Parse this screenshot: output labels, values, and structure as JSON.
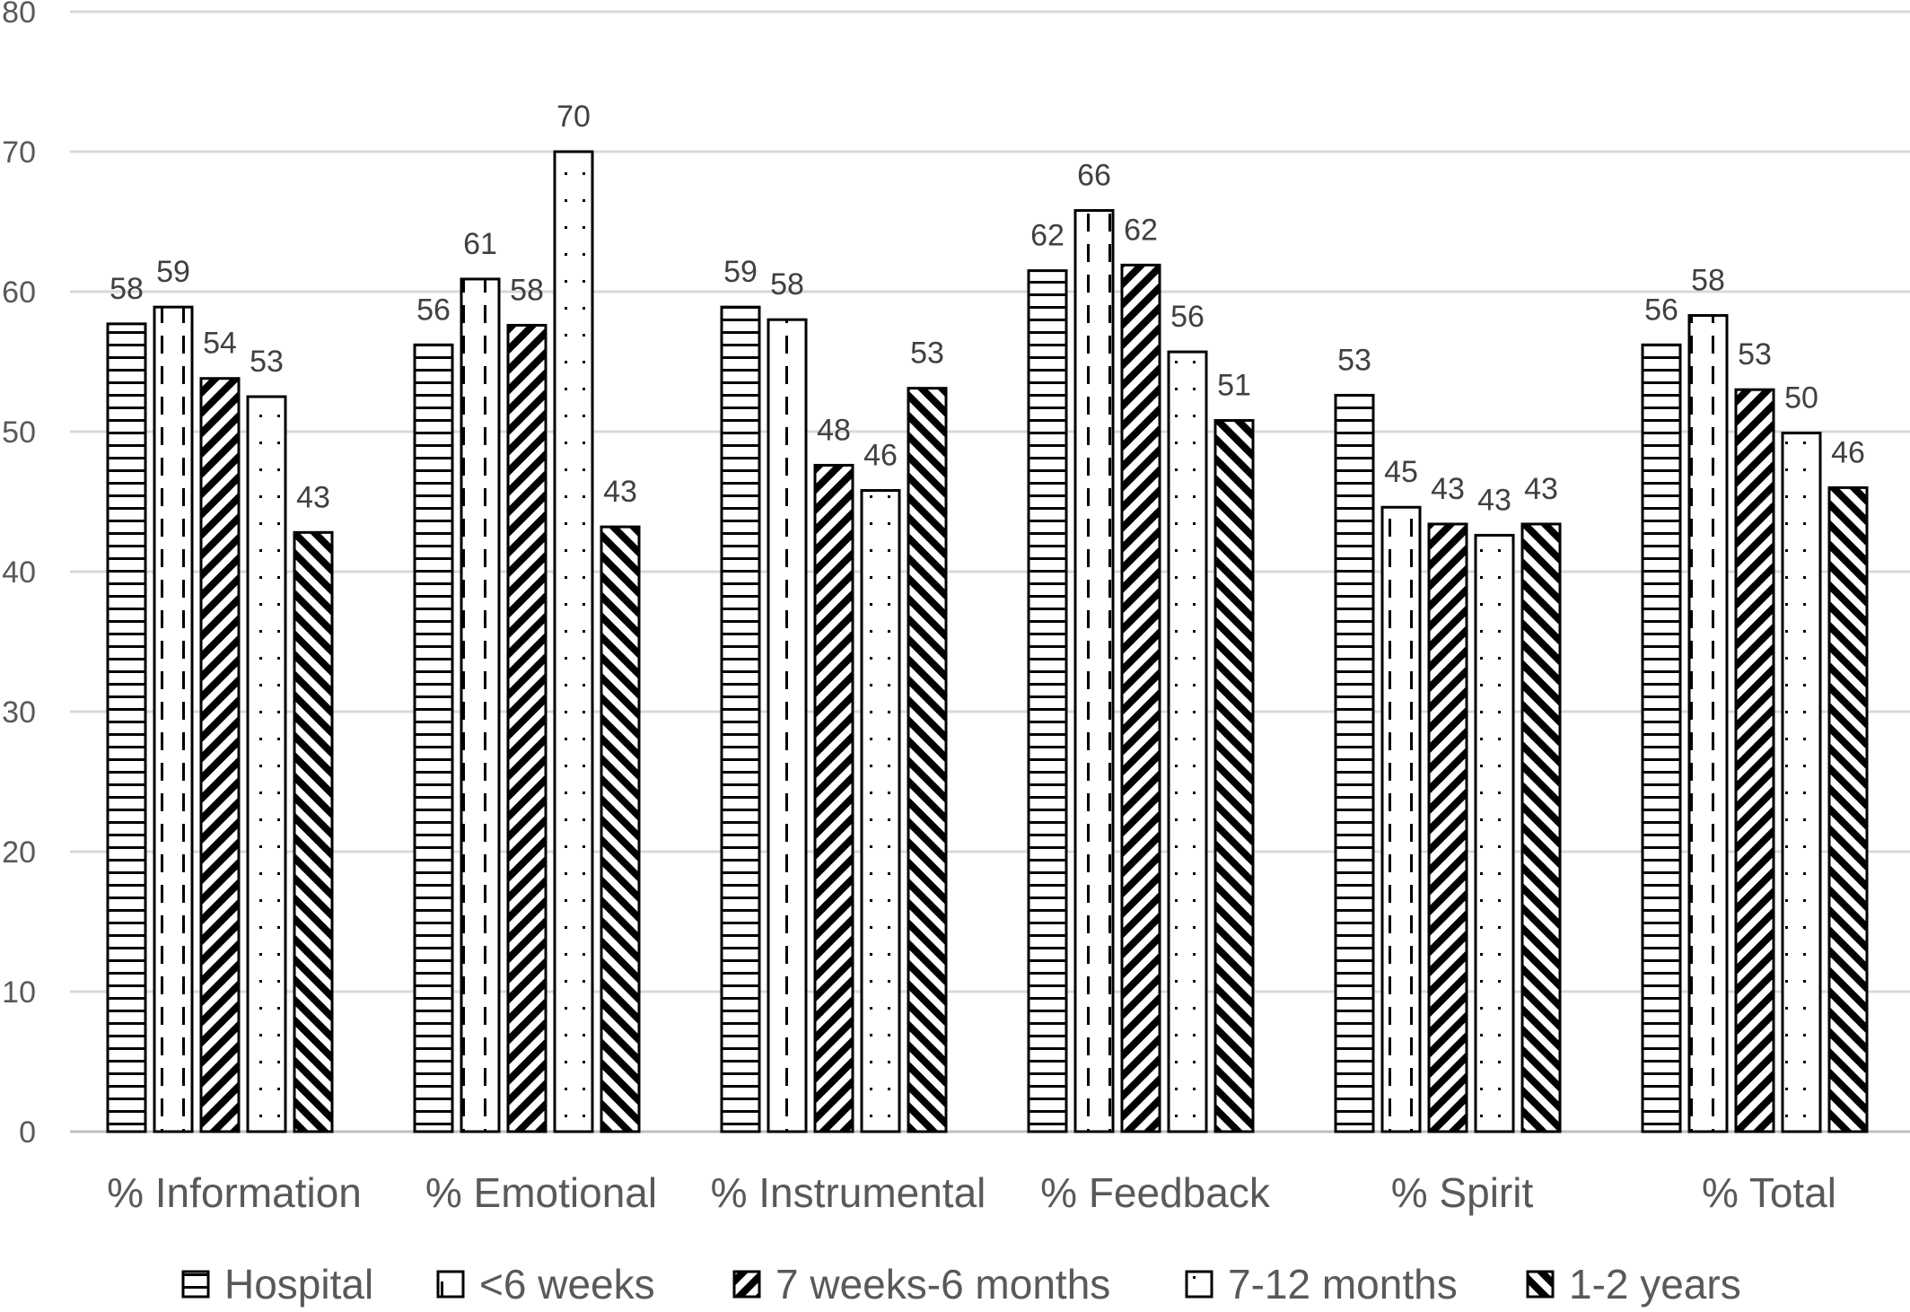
{
  "chart_data": {
    "type": "bar",
    "title": "",
    "xlabel": "",
    "ylabel": "",
    "ylim": [
      0,
      80
    ],
    "yticks": [
      0,
      10,
      20,
      30,
      40,
      50,
      60,
      70,
      80
    ],
    "grid": true,
    "legend_position": "bottom",
    "categories": [
      "% Information",
      "% Emotional",
      "% Instrumental",
      "% Feedback",
      "% Spirit",
      "% Total"
    ],
    "series": [
      {
        "name": "Hospital",
        "pattern": "horizontal-lines",
        "values": [
          57.7,
          56.2,
          58.9,
          61.5,
          52.6,
          56.2
        ],
        "labels": [
          "58",
          "56",
          "59",
          "62",
          "53",
          "56"
        ]
      },
      {
        "name": "<6 weeks",
        "pattern": "vertical-dashes",
        "values": [
          58.9,
          60.9,
          58.0,
          65.8,
          44.6,
          58.3
        ],
        "labels": [
          "59",
          "61",
          "58",
          "66",
          "45",
          "58"
        ]
      },
      {
        "name": "7 weeks-6 months",
        "pattern": "diagonal-down-stripes",
        "values": [
          53.8,
          57.6,
          47.6,
          61.9,
          43.4,
          53.0
        ],
        "labels": [
          "54",
          "58",
          "48",
          "62",
          "43",
          "53"
        ]
      },
      {
        "name": "7-12 months",
        "pattern": "dots",
        "values": [
          52.5,
          70.0,
          45.8,
          55.7,
          42.6,
          49.9
        ],
        "labels": [
          "53",
          "70",
          "46",
          "56",
          "43",
          "50"
        ]
      },
      {
        "name": "1-2 years",
        "pattern": "diagonal-up-stripes",
        "values": [
          42.8,
          43.2,
          53.1,
          50.8,
          43.4,
          46.0
        ],
        "labels": [
          "43",
          "43",
          "53",
          "51",
          "43",
          "46"
        ]
      }
    ],
    "colors": {
      "bar_stroke": "#000000",
      "bar_fill": "#ffffff",
      "gridline": "#d9d9d9",
      "text": "#595959"
    }
  }
}
